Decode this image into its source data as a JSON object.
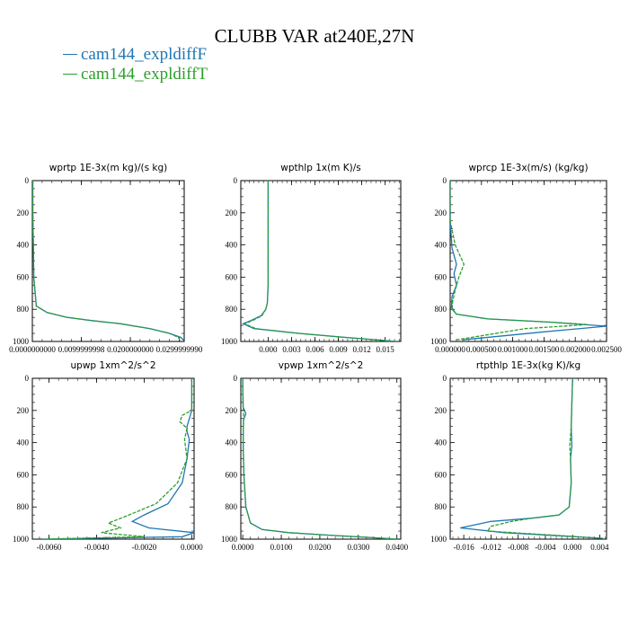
{
  "title": "CLUBB VAR at240E,27N",
  "legend": [
    {
      "label": "cam144_expldiffF",
      "color": "#1f77b4"
    },
    {
      "label": "cam144_expldiffT",
      "color": "#2ca02c"
    }
  ],
  "chart_data": [
    {
      "type": "line",
      "title": "wprtp  1E-3x(m kg)/(s kg)",
      "xlim": [
        0,
        0.031
      ],
      "ylim": [
        1000,
        0
      ],
      "xticks": [
        0,
        0.00999999998,
        0.02,
        0.029999999
      ],
      "xtick_labels": [
        "0.0000000000",
        "0.0099999998",
        "0.0200000000",
        "0.0299999990"
      ],
      "yticks": [
        0,
        200,
        400,
        600,
        800,
        1000
      ],
      "series": [
        {
          "color": "#1f77b4",
          "x": [
            0.0001,
            0.0001,
            0.0002,
            0.0003,
            0.0008,
            0.003,
            0.007,
            0.012,
            0.018,
            0.024,
            0.028,
            0.0303,
            0.031
          ],
          "y": [
            0,
            200,
            400,
            600,
            780,
            820,
            850,
            870,
            890,
            920,
            950,
            975,
            995
          ]
        },
        {
          "color": "#2ca02c",
          "x": [
            0.0001,
            0.0001,
            0.0002,
            0.0003,
            0.0008,
            0.003,
            0.007,
            0.012,
            0.018,
            0.024,
            0.028,
            0.0298,
            0.0302
          ],
          "y": [
            0,
            200,
            400,
            600,
            780,
            820,
            850,
            870,
            890,
            920,
            950,
            975,
            995
          ]
        }
      ]
    },
    {
      "type": "line",
      "title": "wpthlp  1x(m K)/s",
      "xlim": [
        -0.0035,
        0.017
      ],
      "ylim": [
        1000,
        0
      ],
      "xticks": [
        0,
        0.003,
        0.006,
        0.009,
        0.012,
        0.015
      ],
      "xtick_labels": [
        "0.000",
        "0.003",
        "0.006",
        "0.009",
        "0.012",
        "0.015"
      ],
      "yticks": [
        0,
        200,
        400,
        600,
        800,
        1000
      ],
      "series": [
        {
          "color": "#1f77b4",
          "x": [
            0,
            0,
            0,
            0,
            -0.0001,
            -0.0003,
            -0.0009,
            -0.0022,
            -0.0032,
            -0.0018,
            0.004,
            0.01,
            0.0165
          ],
          "y": [
            0,
            300,
            500,
            650,
            760,
            800,
            840,
            870,
            890,
            920,
            950,
            975,
            1000
          ]
        },
        {
          "color": "#2ca02c",
          "x": [
            0,
            0,
            0,
            0,
            -0.0001,
            -0.0003,
            -0.0008,
            -0.002,
            -0.003,
            -0.0016,
            0.0038,
            0.0098,
            0.0162
          ],
          "y": [
            0,
            300,
            500,
            650,
            760,
            800,
            840,
            870,
            890,
            920,
            950,
            975,
            1000
          ]
        }
      ]
    },
    {
      "type": "line",
      "title": "wprcp  1E-3x(m/s) (kg/kg)",
      "xlim": [
        0,
        0.0025
      ],
      "ylim": [
        1000,
        0
      ],
      "xticks": [
        0,
        0.0005,
        0.001,
        0.0015,
        0.002,
        0.0025
      ],
      "xtick_labels": [
        "0.000000",
        "0.000500",
        "0.001000",
        "0.001500",
        "0.002000",
        "0.002500"
      ],
      "yticks": [
        0,
        200,
        400,
        600,
        800,
        1000
      ],
      "series": [
        {
          "color": "#1f77b4",
          "x": [
            0,
            0,
            3e-05,
            0.0001,
            6e-05,
            0.0001,
            3e-05,
            2e-05,
            0.0001,
            0.0006,
            0.0016,
            0.0025,
            0.0015,
            0.0002
          ],
          "y": [
            0,
            250,
            420,
            520,
            580,
            650,
            720,
            790,
            830,
            860,
            880,
            905,
            940,
            990
          ]
        },
        {
          "color": "#2ca02c",
          "x": [
            0,
            0,
            8e-05,
            0.00022,
            0.00014,
            8e-05,
            4e-05,
            3e-05,
            0.0001,
            0.0006,
            0.0016,
            0.0022,
            0.0012,
            0.0001
          ],
          "y": [
            0,
            250,
            400,
            520,
            600,
            680,
            750,
            800,
            830,
            860,
            880,
            895,
            920,
            990
          ]
        }
      ]
    },
    {
      "type": "line",
      "title": "upwp  1xm^2/s^2",
      "xlim": [
        -0.0067,
        0.0001
      ],
      "ylim": [
        1000,
        0
      ],
      "xticks": [
        -0.006,
        -0.004,
        -0.002,
        0
      ],
      "xtick_labels": [
        "-0.0060",
        "-0.0040",
        "-0.0020",
        "0.0000"
      ],
      "yticks": [
        0,
        200,
        400,
        600,
        800,
        1000
      ],
      "series": [
        {
          "color": "#1f77b4",
          "x": [
            0,
            0,
            -0.0001,
            -0.0002,
            -0.0002,
            -0.0001,
            -0.0002,
            -0.0004,
            -0.001,
            -0.002,
            -0.0025,
            -0.0018,
            0.0001,
            -0.0004,
            -0.0062
          ],
          "y": [
            0,
            200,
            250,
            300,
            330,
            380,
            500,
            650,
            780,
            850,
            890,
            930,
            960,
            985,
            1000
          ]
        },
        {
          "color": "#2ca02c",
          "x": [
            0,
            0,
            -0.0004,
            -0.0005,
            -0.0002,
            -0.0003,
            -0.0002,
            -0.0006,
            -0.0015,
            -0.0028,
            -0.0035,
            -0.003,
            -0.0038,
            -0.002,
            -0.0063
          ],
          "y": [
            0,
            200,
            230,
            270,
            310,
            380,
            500,
            650,
            780,
            860,
            900,
            930,
            960,
            985,
            1000
          ]
        }
      ]
    },
    {
      "type": "line",
      "title": "vpwp  1xm^2/s^2",
      "xlim": [
        -0.0005,
        0.041
      ],
      "ylim": [
        1000,
        0
      ],
      "xticks": [
        0,
        0.01,
        0.02,
        0.03,
        0.04
      ],
      "xtick_labels": [
        "0.0000",
        "0.0100",
        "0.0200",
        "0.0300",
        "0.0400"
      ],
      "yticks": [
        0,
        200,
        400,
        600,
        800,
        1000
      ],
      "series": [
        {
          "color": "#1f77b4",
          "x": [
            0,
            0.0001,
            0.0008,
            0.0002,
            0.0001,
            0.0003,
            0.0008,
            0.002,
            0.005,
            0.012,
            0.022,
            0.032,
            0.04
          ],
          "y": [
            0,
            180,
            220,
            260,
            400,
            600,
            800,
            900,
            940,
            960,
            975,
            988,
            1000
          ]
        },
        {
          "color": "#2ca02c",
          "x": [
            0,
            0.0001,
            0.0002,
            0.0002,
            0.0001,
            0.0003,
            0.0008,
            0.002,
            0.005,
            0.012,
            0.022,
            0.032,
            0.04
          ],
          "y": [
            0,
            180,
            220,
            260,
            400,
            600,
            800,
            900,
            940,
            960,
            975,
            988,
            1000
          ]
        }
      ]
    },
    {
      "type": "line",
      "title": "rtpthlp  1E-3x(kg K)/kg",
      "xlim": [
        -0.018,
        0.005
      ],
      "ylim": [
        1000,
        0
      ],
      "xticks": [
        -0.016,
        -0.012,
        -0.008,
        -0.004,
        0,
        0.004
      ],
      "xtick_labels": [
        "-0.016",
        "-0.012",
        "-0.008",
        "-0.004",
        "0.000",
        "0.004"
      ],
      "yticks": [
        0,
        200,
        400,
        600,
        800,
        1000
      ],
      "series": [
        {
          "color": "#1f77b4",
          "x": [
            0,
            -0.0002,
            -0.0001,
            -0.0003,
            -0.0002,
            -0.0005,
            -0.002,
            -0.006,
            -0.012,
            -0.0165,
            -0.01,
            0.0045
          ],
          "y": [
            0,
            300,
            420,
            500,
            650,
            800,
            850,
            870,
            890,
            930,
            960,
            995
          ]
        },
        {
          "color": "#2ca02c",
          "x": [
            0,
            -0.0002,
            -0.0004,
            -0.0003,
            -0.0002,
            -0.0005,
            -0.002,
            -0.006,
            -0.009,
            -0.012,
            -0.0125,
            0.0045
          ],
          "y": [
            0,
            300,
            420,
            500,
            650,
            800,
            850,
            870,
            890,
            920,
            950,
            995
          ]
        }
      ]
    }
  ]
}
